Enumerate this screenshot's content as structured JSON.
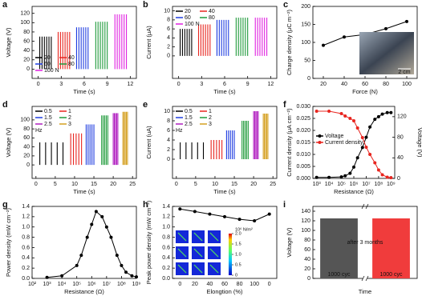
{
  "chart_data": [
    {
      "type": "pulse",
      "label": "a",
      "xlabel": "Time (s)",
      "ylabel": "Voltage (V)",
      "xlim": [
        -0.8,
        12.8
      ],
      "xticks": [
        0,
        3,
        6,
        9,
        12
      ],
      "ylim": [
        -20,
        135
      ],
      "yticks": [
        0,
        20,
        40,
        60,
        80,
        100,
        120
      ],
      "legend": "lower left",
      "series": [
        {
          "name": "20",
          "color": "#000000",
          "x": [
            0.2,
            0.5,
            0.8,
            1.1,
            1.4,
            1.7
          ],
          "values": [
            70,
            70,
            70,
            70,
            70,
            70
          ]
        },
        {
          "name": "40",
          "color": "#e8251f",
          "x": [
            2.6,
            2.9,
            3.2,
            3.5,
            3.8,
            4.1
          ],
          "values": [
            80,
            80,
            80,
            80,
            80,
            80
          ]
        },
        {
          "name": "60",
          "color": "#1f3de0",
          "x": [
            5,
            5.3,
            5.6,
            5.9,
            6.2,
            6.5
          ],
          "values": [
            90,
            90,
            90,
            90,
            90,
            90
          ]
        },
        {
          "name": "80",
          "color": "#1e9a3a",
          "x": [
            7.5,
            7.8,
            8.1,
            8.4,
            8.7,
            9
          ],
          "values": [
            102,
            102,
            102,
            102,
            102,
            102
          ]
        },
        {
          "name": "100 N",
          "color": "#e020e0",
          "x": [
            10,
            10.3,
            10.6,
            10.9,
            11.2,
            11.5
          ],
          "values": [
            118,
            118,
            118,
            118,
            118,
            118
          ]
        }
      ]
    },
    {
      "type": "pulse",
      "label": "b",
      "xlabel": "Time (s)",
      "ylabel": "Current (μA)",
      "xlim": [
        -0.8,
        12.8
      ],
      "xticks": [
        0,
        3,
        6,
        9,
        12
      ],
      "ylim": [
        -5,
        11
      ],
      "yticks": [
        0,
        2,
        4,
        6,
        8,
        10
      ],
      "legend": "upper left",
      "series": [
        {
          "name": "20",
          "color": "#000000",
          "x": [
            0.2,
            0.5,
            0.8,
            1.1,
            1.4,
            1.7
          ],
          "values": [
            6,
            6,
            6,
            6,
            6,
            6
          ]
        },
        {
          "name": "40",
          "color": "#e8251f",
          "x": [
            2.6,
            2.9,
            3.2,
            3.5,
            3.8,
            4.1
          ],
          "values": [
            7,
            7,
            7,
            7,
            7,
            7
          ]
        },
        {
          "name": "60",
          "color": "#1f3de0",
          "x": [
            5,
            5.3,
            5.6,
            5.9,
            6.2,
            6.5
          ],
          "values": [
            8,
            8,
            8,
            8,
            8,
            8
          ]
        },
        {
          "name": "80",
          "color": "#1e9a3a",
          "x": [
            7.5,
            7.8,
            8.1,
            8.4,
            8.7,
            9
          ],
          "values": [
            8.5,
            8.5,
            8.5,
            8.5,
            8.5,
            8.5
          ]
        },
        {
          "name": "100 N",
          "color": "#e020e0",
          "x": [
            10,
            10.3,
            10.6,
            10.9,
            11.2,
            11.5
          ],
          "values": [
            8.5,
            8.5,
            8.5,
            8.5,
            8.5,
            8.5
          ]
        }
      ]
    },
    {
      "type": "line",
      "label": "c",
      "xlabel": "Force (N)",
      "ylabel": "Charge density (μC m⁻²)",
      "xlim": [
        10,
        110
      ],
      "xticks": [
        20,
        40,
        60,
        80,
        100
      ],
      "ylim": [
        0,
        200
      ],
      "yticks": [
        0,
        50,
        100,
        150,
        200
      ],
      "color": "#000000",
      "x": [
        20,
        40,
        60,
        80,
        100
      ],
      "values": [
        92,
        115,
        122,
        138,
        158
      ],
      "inset_label": "2 cm"
    },
    {
      "type": "pulse",
      "label": "d",
      "xlabel": "Time (s)",
      "ylabel": "Voltage (V)",
      "xlim": [
        -1,
        26
      ],
      "xticks": [
        0,
        5,
        10,
        15,
        20,
        25
      ],
      "ylim": [
        -30,
        130
      ],
      "yticks": [
        0,
        20,
        40,
        60,
        80,
        100
      ],
      "legend": "upper left",
      "legend_title": "Hz",
      "series": [
        {
          "name": "0.5",
          "color": "#000000",
          "x": [
            1,
            2.5,
            4,
            5.5,
            7
          ],
          "values": [
            50,
            50,
            50,
            50,
            50
          ]
        },
        {
          "name": "1",
          "color": "#e8251f",
          "x": [
            9,
            9.7,
            10.4,
            11.1,
            11.8
          ],
          "values": [
            70,
            70,
            70,
            70,
            70
          ]
        },
        {
          "name": "1.5",
          "color": "#1f3de0",
          "x": [
            13,
            13.5,
            14,
            14.5,
            15
          ],
          "values": [
            90,
            90,
            90,
            90,
            90
          ]
        },
        {
          "name": "2",
          "color": "#1e9a3a",
          "x": [
            17,
            17.4,
            17.8,
            18.2,
            18.6
          ],
          "values": [
            110,
            110,
            110,
            110,
            110
          ]
        },
        {
          "name": "2.5",
          "color": "#b01ec0",
          "x": [
            20,
            20.3,
            20.6,
            20.9,
            21.2
          ],
          "values": [
            115,
            115,
            115,
            115,
            115
          ]
        },
        {
          "name": "3",
          "color": "#d4a020",
          "x": [
            22.5,
            22.8,
            23.1,
            23.4,
            23.7
          ],
          "values": [
            118,
            118,
            118,
            118,
            118
          ]
        }
      ]
    },
    {
      "type": "pulse",
      "label": "e",
      "xlabel": "Time (s)",
      "ylabel": "Current (uA)",
      "xlim": [
        -1,
        26
      ],
      "xticks": [
        0,
        5,
        10,
        15,
        20,
        25
      ],
      "ylim": [
        -4,
        11
      ],
      "yticks": [
        0,
        2,
        4,
        6,
        8,
        10
      ],
      "legend": "upper left",
      "legend_title": "Hz",
      "series": [
        {
          "name": "0.5",
          "color": "#000000",
          "x": [
            1,
            2.5,
            4,
            5.5,
            7
          ],
          "values": [
            3.5,
            3.5,
            3.5,
            3.5,
            3.5
          ]
        },
        {
          "name": "1",
          "color": "#e8251f",
          "x": [
            9,
            9.7,
            10.4,
            11.1,
            11.8
          ],
          "values": [
            4,
            4,
            4,
            4,
            4
          ]
        },
        {
          "name": "1.5",
          "color": "#1f3de0",
          "x": [
            13,
            13.5,
            14,
            14.5,
            15
          ],
          "values": [
            6,
            6,
            6,
            6,
            6
          ]
        },
        {
          "name": "2",
          "color": "#1e9a3a",
          "x": [
            17,
            17.4,
            17.8,
            18.2,
            18.6
          ],
          "values": [
            8,
            8,
            8,
            8,
            8
          ]
        },
        {
          "name": "2.5",
          "color": "#b01ec0",
          "x": [
            20,
            20.3,
            20.6,
            20.9,
            21.2
          ],
          "values": [
            10,
            10,
            10,
            10,
            10
          ]
        },
        {
          "name": "3",
          "color": "#d4a020",
          "x": [
            22.5,
            22.8,
            23.1,
            23.4,
            23.7
          ],
          "values": [
            9.5,
            9.5,
            9.5,
            9.5,
            9.5
          ]
        }
      ]
    },
    {
      "type": "dual_line",
      "label": "f",
      "xlabel": "Resistance (Ω)",
      "ylabel": "Current density (μA cm⁻²)",
      "y2label": "Voltage (V)",
      "y_color": "#e8251f",
      "log_x": true,
      "legend": "center left",
      "xlim": [
        500,
        2000000000
      ],
      "xticks": [
        {
          "value": 1000,
          "label": "10³"
        },
        {
          "value": 10000,
          "label": "10⁴"
        },
        {
          "value": 100000,
          "label": "10⁵"
        },
        {
          "value": 1000000,
          "label": "10⁶"
        },
        {
          "value": 10000000,
          "label": "10⁷"
        },
        {
          "value": 100000000,
          "label": "10⁸"
        },
        {
          "value": 1000000000,
          "label": "10⁹"
        }
      ],
      "ylim": [
        0,
        0.03
      ],
      "yticks": [
        {
          "value": 0,
          "label": "0.000"
        },
        0.005,
        {
          "value": 0.01,
          "label": "0.010"
        },
        0.015,
        {
          "value": 0.02,
          "label": "0.020"
        },
        0.025,
        {
          "value": 0.03,
          "label": "0.030"
        }
      ],
      "y2lim": [
        0,
        140
      ],
      "y2ticks": [
        0,
        40,
        80,
        120
      ],
      "x": [
        1000,
        10000,
        100000,
        200000,
        500000,
        1000000,
        2000000,
        5000000,
        10000000,
        20000000,
        50000000,
        100000000,
        200000000,
        500000000,
        1000000000
      ],
      "series": [
        {
          "name": "Voltage",
          "color": "#000000",
          "axis": "y2",
          "values": [
            2,
            2,
            3,
            5,
            10,
            22,
            40,
            60,
            80,
            100,
            115,
            120,
            125,
            128,
            128
          ]
        },
        {
          "name": "Current density",
          "color": "#e8251f",
          "values": [
            0.028,
            0.028,
            0.027,
            0.026,
            0.025,
            0.024,
            0.021,
            0.017,
            0.013,
            0.01,
            0.0065,
            0.0035,
            0.0015,
            0.0005,
            0.0003
          ]
        }
      ]
    },
    {
      "type": "line",
      "label": "g",
      "xlabel": "Resistance (Ω)",
      "ylabel": "Power density (mW cm⁻²)",
      "log_x": true,
      "color": "#000000",
      "xlim": [
        100,
        1000000000
      ],
      "xticks": [
        {
          "value": 100,
          "label": "10²"
        },
        {
          "value": 1000,
          "label": "10³"
        },
        {
          "value": 10000,
          "label": "10⁴"
        },
        {
          "value": 100000,
          "label": "10⁵"
        },
        {
          "value": 1000000,
          "label": "10⁶"
        },
        {
          "value": 10000000,
          "label": "10⁷"
        },
        {
          "value": 100000000,
          "label": "10⁸"
        },
        {
          "value": 1000000000,
          "label": "10⁹"
        }
      ],
      "ylim": [
        0,
        1.4
      ],
      "yticks": [
        {
          "value": 0,
          "label": "0.0"
        },
        0.2,
        0.4,
        0.6,
        0.8,
        {
          "value": 1,
          "label": "1.0"
        },
        1.2,
        1.4
      ],
      "x": [
        1000,
        10000,
        100000,
        200000,
        500000,
        1000000,
        2000000,
        5000000,
        10000000,
        20000000,
        50000000,
        100000000,
        200000000,
        500000000,
        1000000000
      ],
      "values": [
        0.02,
        0.05,
        0.25,
        0.45,
        0.8,
        1.05,
        1.3,
        1.2,
        1.0,
        0.8,
        0.45,
        0.25,
        0.12,
        0.05,
        0.03
      ]
    },
    {
      "type": "line",
      "label": "h",
      "xlabel": "Elongtion (%)",
      "ylabel": "Peak power density (mW cm⁻²)",
      "color": "#000000",
      "categories": [
        "0",
        "20",
        "40",
        "60",
        "80",
        "100",
        "0"
      ],
      "values": [
        1.35,
        1.3,
        1.25,
        1.2,
        1.15,
        1.12,
        1.25
      ],
      "ylim": [
        0,
        1.4
      ],
      "yticks": [
        {
          "value": 0,
          "label": "0.0"
        },
        0.2,
        0.4,
        0.6,
        0.8,
        {
          "value": 1,
          "label": "1.0"
        },
        1.2,
        1.4
      ],
      "colorbar_unit": "10⁶ N/m²",
      "colorbar_ticks": [
        0,
        0.5,
        {
          "value": 1,
          "label": "1.0"
        },
        1.5,
        {
          "value": 2,
          "label": "2.0"
        }
      ]
    },
    {
      "type": "bar",
      "label": "i",
      "xlabel": "Time",
      "ylabel": "Voltage (V)",
      "annotation": "after 3 months",
      "categories": [
        "1000 cyc",
        "1000 cyc"
      ],
      "values": [
        125,
        125
      ],
      "colors": [
        "#555555",
        "#f03c3c"
      ],
      "ylim": [
        0,
        150
      ],
      "yticks": [
        0,
        20,
        40,
        60,
        80,
        100,
        120,
        140
      ]
    }
  ]
}
